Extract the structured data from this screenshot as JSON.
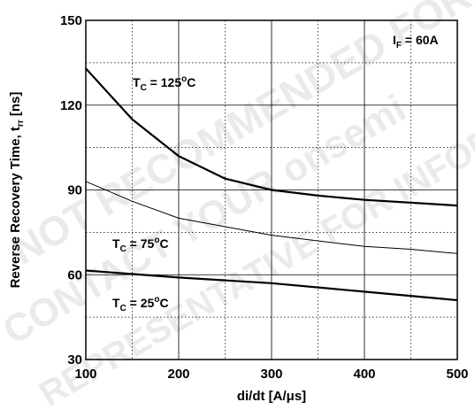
{
  "chart_data": {
    "type": "line",
    "title": "",
    "xlabel": "di/dt [A/μs]",
    "ylabel": "Reverse Recovery Time, t",
    "ylabel_sub": "rr",
    "ylabel_unit": " [ns]",
    "xlim": [
      100,
      500
    ],
    "ylim": [
      30,
      150
    ],
    "x_ticks": [
      "100",
      "200",
      "300",
      "400",
      "500"
    ],
    "y_ticks": [
      "30",
      "60",
      "90",
      "120",
      "150"
    ],
    "grid": true,
    "condition": {
      "main": "I",
      "sub": "F",
      "rest": " = 60A"
    },
    "series": [
      {
        "name": "T_C = 125°C",
        "label": {
          "main": "T",
          "sub": "C",
          "rest": " = 125",
          "sup": "o",
          "tail": "C"
        },
        "stroke": "bold",
        "x": [
          100,
          150,
          200,
          250,
          300,
          350,
          400,
          450,
          500
        ],
        "y": [
          133,
          115,
          102,
          94,
          90,
          88,
          86.5,
          85.5,
          84.5
        ]
      },
      {
        "name": "T_C = 75°C",
        "label": {
          "main": "T",
          "sub": "C",
          "rest": " = 75",
          "sup": "o",
          "tail": "C"
        },
        "stroke": "thin",
        "x": [
          100,
          150,
          200,
          250,
          300,
          350,
          400,
          450,
          500
        ],
        "y": [
          93,
          86,
          80,
          77,
          74,
          72,
          70,
          69,
          67.5
        ]
      },
      {
        "name": "T_C = 25°C",
        "label": {
          "main": "T",
          "sub": "C",
          "rest": " = 25",
          "sup": "o",
          "tail": "C"
        },
        "stroke": "bold",
        "x": [
          100,
          200,
          300,
          400,
          500
        ],
        "y": [
          61.5,
          59,
          57,
          54,
          51
        ]
      }
    ],
    "watermark_lines": [
      "NOT RECOMMENDED FOR NEW DESIGN",
      "CONTACT YOUR onsemi",
      "REPRESENTATIVE FOR INFORMATION"
    ]
  }
}
